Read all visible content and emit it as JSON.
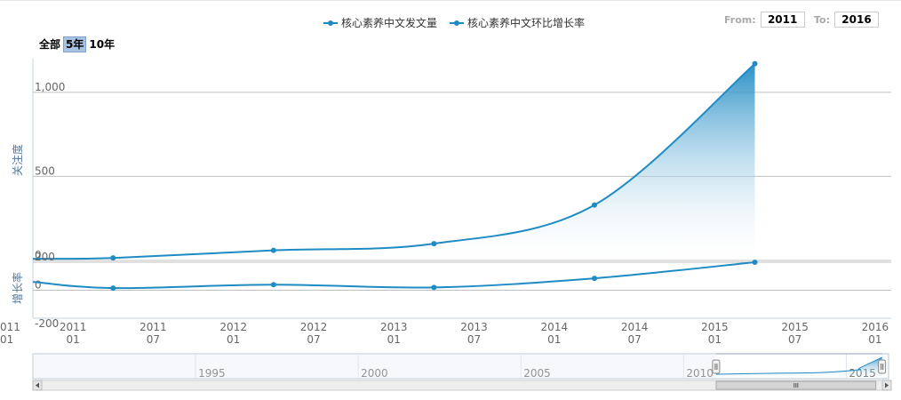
{
  "legend": [
    {
      "label": "核心素养中文发文量",
      "color": "#1f8bc4"
    },
    {
      "label": "核心素养中文环比增长率",
      "color": "#1f8bc4"
    }
  ],
  "range_selector": {
    "buttons": [
      {
        "label": "全部",
        "active": false
      },
      {
        "label": "5年",
        "active": true
      },
      {
        "label": "10年",
        "active": false
      }
    ]
  },
  "date_range": {
    "from_label": "From:",
    "from_value": "2011",
    "to_label": "To:",
    "to_value": "2016"
  },
  "colors": {
    "series": "#1f8bc4",
    "grid": "#c0c0c0",
    "axis_title": "#4d759e",
    "navigator_mask": "#e6ebf5"
  },
  "chart_data": {
    "type": "line",
    "x_axis": {
      "ticks": [
        {
          "label": [
            "2011",
            "01"
          ],
          "x": 2011.0
        },
        {
          "label": [
            "2011",
            "07"
          ],
          "x": 2011.5
        },
        {
          "label": [
            "2012",
            "01"
          ],
          "x": 2012.0
        },
        {
          "label": [
            "2012",
            "07"
          ],
          "x": 2012.5
        },
        {
          "label": [
            "2013",
            "01"
          ],
          "x": 2013.0
        },
        {
          "label": [
            "2013",
            "07"
          ],
          "x": 2013.5
        },
        {
          "label": [
            "2014",
            "01"
          ],
          "x": 2014.0
        },
        {
          "label": [
            "2014",
            "07"
          ],
          "x": 2014.5
        },
        {
          "label": [
            "2015",
            "01"
          ],
          "x": 2015.0
        },
        {
          "label": [
            "2015",
            "07"
          ],
          "x": 2015.5
        },
        {
          "label": [
            "2016",
            "01"
          ],
          "x": 2016.0
        }
      ],
      "xlim": [
        2010.75,
        2016.1
      ]
    },
    "panes": [
      {
        "ylabel": "关注度",
        "ylim": [
          0,
          1200
        ],
        "yticks": [
          0,
          500,
          1000
        ],
        "ytick_labels": [
          "0",
          "500",
          "1,000"
        ],
        "grid": true,
        "series": [
          {
            "name": "核心素养中文发文量",
            "area": true,
            "points": [
              {
                "x": 2010.75,
                "y": 10
              },
              {
                "x": 2011.25,
                "y": 15
              },
              {
                "x": 2012.25,
                "y": 60
              },
              {
                "x": 2013.25,
                "y": 100
              },
              {
                "x": 2014.25,
                "y": 330
              },
              {
                "x": 2015.25,
                "y": 1170
              }
            ]
          }
        ]
      },
      {
        "ylabel": "增长率",
        "ylim": [
          -200,
          200
        ],
        "yticks": [
          -200,
          0,
          200
        ],
        "ytick_labels": [
          "-200",
          "0",
          "200"
        ],
        "grid": true,
        "series": [
          {
            "name": "核心素养中文环比增长率",
            "area": false,
            "points": [
              {
                "x": 2010.75,
                "y": 60
              },
              {
                "x": 2011.25,
                "y": 15
              },
              {
                "x": 2012.25,
                "y": 40
              },
              {
                "x": 2013.25,
                "y": 20
              },
              {
                "x": 2014.25,
                "y": 85
              },
              {
                "x": 2015.25,
                "y": 200
              }
            ]
          }
        ]
      }
    ],
    "navigator": {
      "tick_labels": [
        "1995",
        "2000",
        "2005",
        "2010",
        "2015"
      ],
      "tick_years": [
        1995,
        2000,
        2005,
        2010,
        2015
      ],
      "range": [
        1990.0,
        2016.3
      ],
      "selected": [
        2011.0,
        2016.1
      ]
    },
    "left_partial_label": [
      "011",
      "01"
    ]
  }
}
